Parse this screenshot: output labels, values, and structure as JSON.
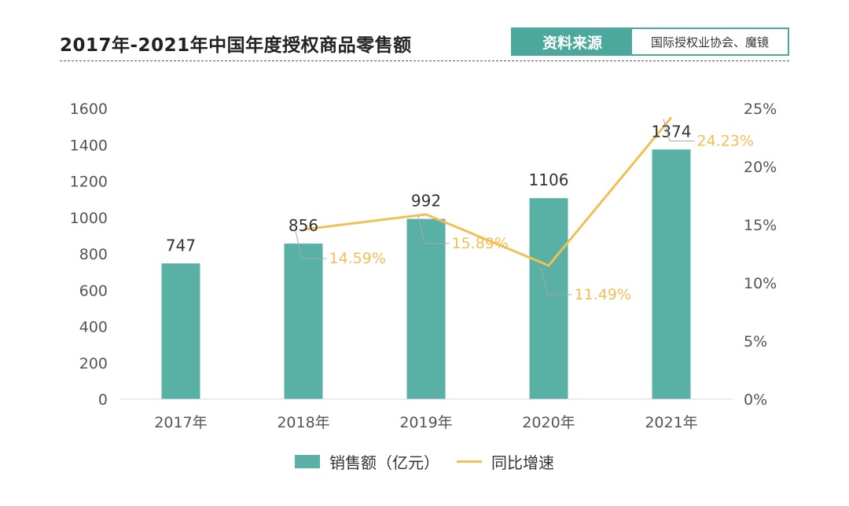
{
  "header": {
    "title": "2017年-2021年中国年度授权商品零售额",
    "source_label": "资料来源",
    "source_value": "国际授权业协会、魔镜"
  },
  "colors": {
    "bar": "#59b0a5",
    "line": "#f2bf55",
    "accent": "#4ca79c",
    "leader": "#a8a8a8"
  },
  "chart_data": {
    "type": "bar",
    "categories": [
      "2017年",
      "2018年",
      "2019年",
      "2020年",
      "2021年"
    ],
    "series": [
      {
        "name": "销售额（亿元）",
        "type": "bar",
        "axis": "left",
        "values": [
          747,
          856,
          992,
          1106,
          1374
        ],
        "labels": [
          "747",
          "856",
          "992",
          "1106",
          "1374"
        ]
      },
      {
        "name": "同比增速",
        "type": "line",
        "axis": "right",
        "values": [
          null,
          14.59,
          15.89,
          11.49,
          24.23
        ],
        "labels": [
          "",
          "14.59%",
          "15.89%",
          "11.49%",
          "24.23%"
        ]
      }
    ],
    "y_left": {
      "ylim": [
        0,
        1600
      ],
      "ticks": [
        0,
        200,
        400,
        600,
        800,
        1000,
        1200,
        1400,
        1600
      ],
      "tick_labels": [
        "0",
        "200",
        "400",
        "600",
        "800",
        "1000",
        "1200",
        "1400",
        "1600"
      ]
    },
    "y_right": {
      "ylim": [
        0,
        25
      ],
      "ticks": [
        0,
        5,
        10,
        15,
        20,
        25
      ],
      "tick_labels": [
        "0%",
        "5%",
        "10%",
        "15%",
        "20%",
        "25%"
      ]
    },
    "grid": false,
    "legend": "bottom-center"
  }
}
